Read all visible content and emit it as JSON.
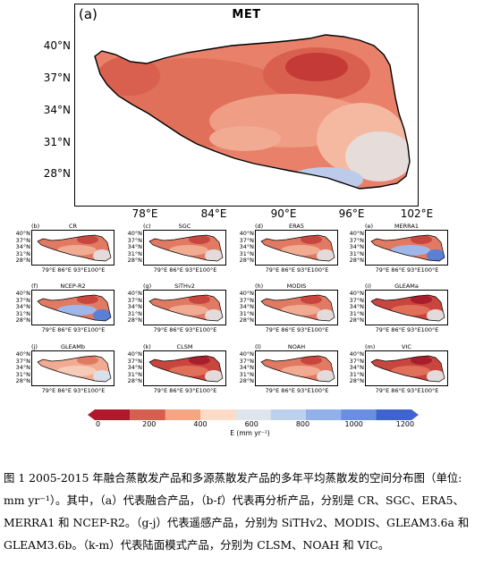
{
  "main_panel": {
    "label": "(a)",
    "title": "MET",
    "y_ticks": [
      "40°N",
      "37°N",
      "34°N",
      "31°N",
      "28°N"
    ],
    "x_ticks": [
      "78°E",
      "84°E",
      "90°E",
      "96°E",
      "102°E"
    ]
  },
  "small_panels": [
    {
      "label": "(b)",
      "title": "CR",
      "variant": "warm"
    },
    {
      "label": "(c)",
      "title": "SGC",
      "variant": "warm"
    },
    {
      "label": "(d)",
      "title": "ERA5",
      "variant": "warm"
    },
    {
      "label": "(e)",
      "title": "MERRA1",
      "variant": "blue-east"
    },
    {
      "label": "(f)",
      "title": "NCEP-R2",
      "variant": "blue-east"
    },
    {
      "label": "(g)",
      "title": "SiTHv2",
      "variant": "warm"
    },
    {
      "label": "(h)",
      "title": "MODIS",
      "variant": "warm"
    },
    {
      "label": "(i)",
      "title": "GLEAMa",
      "variant": "dark"
    },
    {
      "label": "(j)",
      "title": "GLEAMb",
      "variant": "light"
    },
    {
      "label": "(k)",
      "title": "CLSM",
      "variant": "dark"
    },
    {
      "label": "(l)",
      "title": "NOAH",
      "variant": "warm"
    },
    {
      "label": "(m)",
      "title": "VIC",
      "variant": "dark"
    }
  ],
  "small_y_ticks": [
    "40°N",
    "37°N",
    "34°N",
    "31°N",
    "28°N"
  ],
  "small_x_ticks": "79°E 86°E 93°E100°E",
  "colorbar": {
    "ticks": [
      "0",
      "200",
      "400",
      "600",
      "800",
      "1000",
      "1200"
    ],
    "label": "E (mm yr⁻¹)",
    "colors": [
      "#b2182b",
      "#d6604d",
      "#f4a582",
      "#fddbc7",
      "#dfe5ec",
      "#bcd0f0",
      "#92b0ea",
      "#6a8ee0",
      "#3f63cf"
    ]
  },
  "caption": {
    "line1": "图 1 2005-2015 年融合蒸散发产品和多源蒸散发产品的多年平均蒸散发的空间分布图（单位:",
    "line2": "mm yr⁻¹）。其中，（a）代表融合产品，（b-f）代表再分析产品，分别是 CR、SGC、ERA5、",
    "line3": "MERRA1 和 NCEP-R2。（g-j）代表遥感产品，分别为 SiTHv2、MODIS、GLEAM3.6a 和",
    "line4": "GLEAM3.6b。（k-m）代表陆面模式产品，分别为 CLSM、NOAH 和 VIC。"
  }
}
